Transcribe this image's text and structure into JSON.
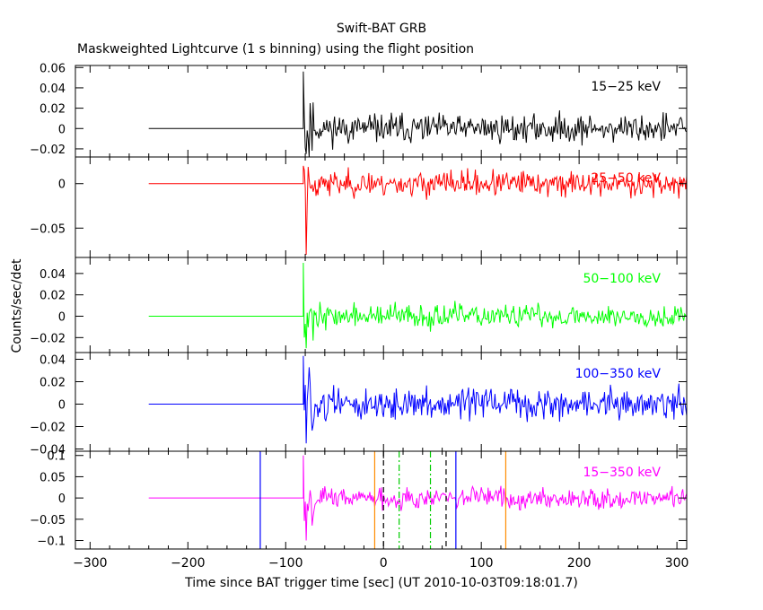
{
  "chart_data": {
    "type": "line",
    "title": "Swift-BAT GRB",
    "subtitle": "Maskweighted Lightcurve (1 s binning) using the flight position",
    "xlabel": "Time since BAT trigger time [sec] (UT 2010-10-03T09:18:01.7)",
    "ylabel": "Counts/sec/det",
    "xlim": [
      -315,
      310
    ],
    "x_ticks": [
      -300,
      -200,
      -100,
      0,
      100,
      200,
      300
    ],
    "x_tick_labels": [
      "−300",
      "−200",
      "−100",
      "0",
      "100",
      "200",
      "300"
    ],
    "data_start": -240,
    "event_start": -82,
    "data_end": 310,
    "panels": [
      {
        "band": "15−25 keV",
        "color": "#000000",
        "ylim": [
          -0.028,
          0.062
        ],
        "yticks": [
          -0.02,
          0,
          0.02,
          0.04,
          0.06
        ],
        "ytick_labels": [
          "−0.02",
          "0",
          "0.02",
          "0.04",
          "0.06"
        ],
        "noise": 0.009,
        "spike": 0.056,
        "dip": -0.025,
        "seed": 11
      },
      {
        "band": "25−50 keV",
        "color": "#ff0000",
        "ylim": [
          -0.083,
          0.03
        ],
        "yticks": [
          -0.05,
          0
        ],
        "ytick_labels": [
          "−0.05",
          "0"
        ],
        "noise": 0.009,
        "spike": 0.02,
        "dip": -0.08,
        "seed": 23
      },
      {
        "band": "50−100 keV",
        "color": "#00ff00",
        "ylim": [
          -0.034,
          0.055
        ],
        "yticks": [
          -0.02,
          0,
          0.02,
          0.04
        ],
        "ytick_labels": [
          "−0.02",
          "0",
          "0.02",
          "0.04"
        ],
        "noise": 0.007,
        "spike": 0.05,
        "dip": -0.03,
        "seed": 37
      },
      {
        "band": "100−350 keV",
        "color": "#0000ff",
        "ylim": [
          -0.042,
          0.046
        ],
        "yticks": [
          -0.04,
          -0.02,
          0,
          0.02,
          0.04
        ],
        "ytick_labels": [
          "−0.04",
          "−0.02",
          "0",
          "0.02",
          "0.04"
        ],
        "noise": 0.009,
        "spike": 0.043,
        "dip": -0.035,
        "seed": 51
      },
      {
        "band": "15−350 keV",
        "color": "#ff00ff",
        "ylim": [
          -0.12,
          0.11
        ],
        "yticks": [
          -0.1,
          -0.05,
          0,
          0.05,
          0.1
        ],
        "ytick_labels": [
          "−0.1",
          "−0.05",
          "0",
          "0.05",
          "0.1"
        ],
        "noise": 0.016,
        "spike": 0.1,
        "dip": -0.1,
        "seed": 67
      }
    ],
    "markers": [
      {
        "x": -126,
        "color": "#0000ff",
        "style": "solid"
      },
      {
        "x": 74,
        "color": "#0000ff",
        "style": "solid"
      },
      {
        "x": -9,
        "color": "#ff8c00",
        "style": "solid"
      },
      {
        "x": 125,
        "color": "#ff8c00",
        "style": "solid"
      },
      {
        "x": 0,
        "color": "#000000",
        "style": "dash"
      },
      {
        "x": 64,
        "color": "#000000",
        "style": "dash"
      },
      {
        "x": 16,
        "color": "#00cc00",
        "style": "dashdot"
      },
      {
        "x": 48,
        "color": "#00cc00",
        "style": "dashdot"
      }
    ]
  }
}
